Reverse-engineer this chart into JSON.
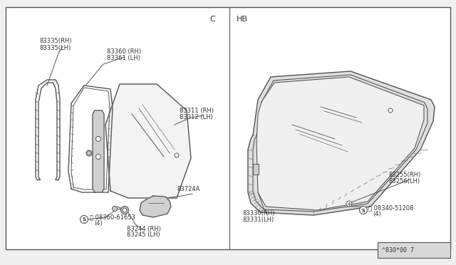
{
  "bg_color": "#f0f0f0",
  "border_color": "#555555",
  "panel_bg": "#ffffff",
  "line_color": "#555555",
  "text_color": "#333333",
  "footer_text": "^830*00 7",
  "left_label": "C",
  "right_label": "HB"
}
